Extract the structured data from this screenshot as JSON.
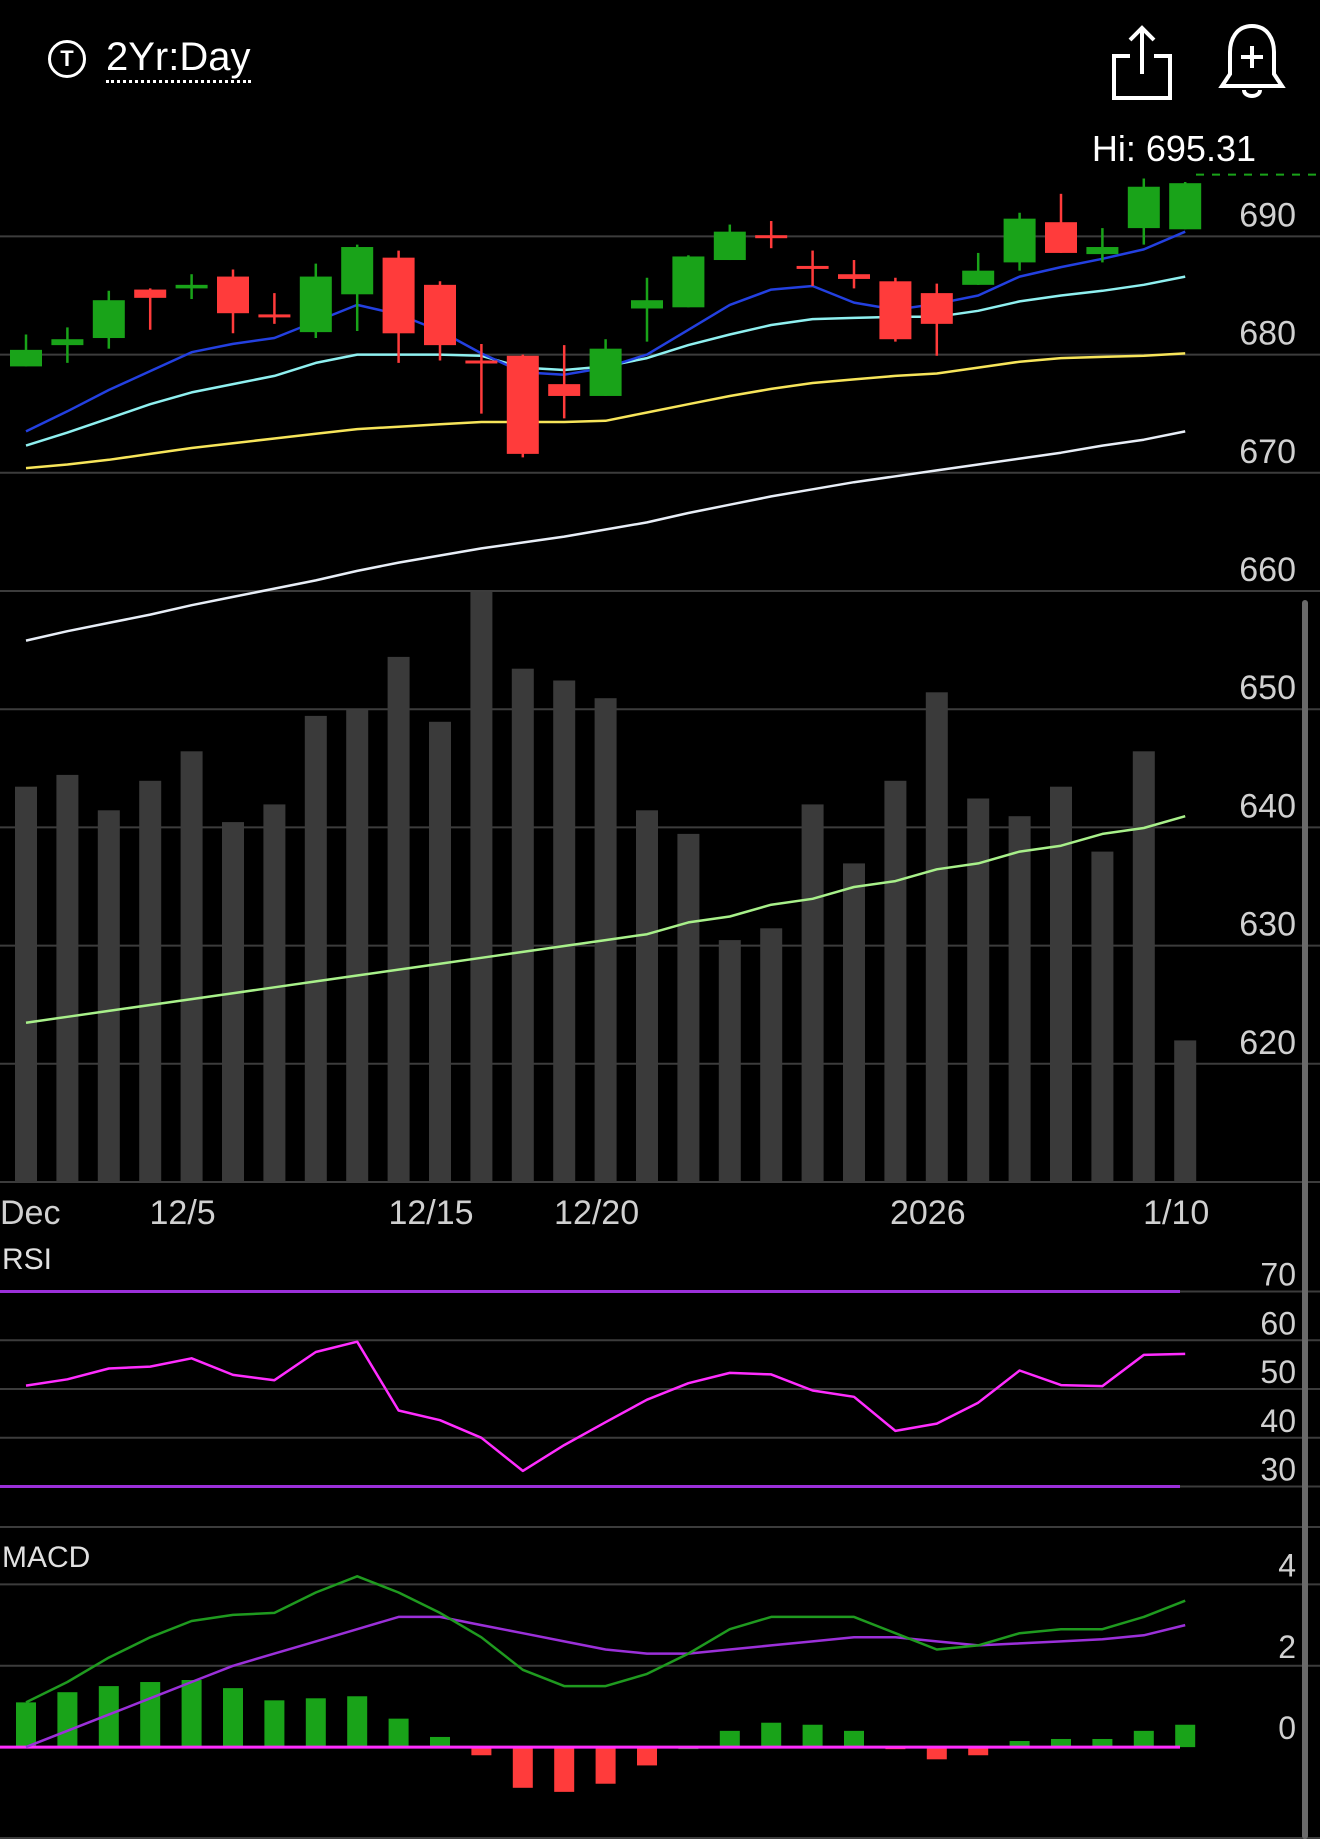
{
  "header": {
    "period_icon_letter": "T",
    "period_label": "2Yr:Day",
    "share_icon": "share-icon",
    "alert_icon": "add-alert-bell-icon"
  },
  "hi_label": "Hi: 695.31",
  "colors": {
    "up": "#19a319",
    "down": "#ff3b3b",
    "ma_blue": "#2340e0",
    "ma_cyan": "#8ff0f0",
    "ma_yellow": "#f7e55a",
    "ma_white": "#e8eef7",
    "volume_bar": "#3a3a3a",
    "volume_ma": "#a8f08a",
    "rsi_line": "#ff2dff",
    "rsi_band": "#9b30d9",
    "macd_line": "#1f9a1f",
    "macd_signal": "#9b30d9",
    "macd_zero": "#ff2dff",
    "grid": "#3c3c3c"
  },
  "chart_data": [
    {
      "type": "candlestick",
      "title": "",
      "x_labels": [
        {
          "index": 0,
          "label": "Dec"
        },
        {
          "index": 4,
          "label": "12/5"
        },
        {
          "index": 10,
          "label": "12/15"
        },
        {
          "index": 14,
          "label": "12/20"
        },
        {
          "index": 22,
          "label": "2026"
        },
        {
          "index": 28,
          "label": "1/10"
        }
      ],
      "y_ticks": [
        690,
        680,
        670,
        660,
        650,
        640,
        630,
        620
      ],
      "ylim": [
        610,
        699
      ],
      "grid": true,
      "hi_value": 695.31,
      "candles": [
        {
          "o": 679.0,
          "c": 680.4,
          "h": 681.7,
          "l": 679.0
        },
        {
          "o": 680.8,
          "c": 681.3,
          "h": 682.3,
          "l": 679.3
        },
        {
          "o": 681.4,
          "c": 684.6,
          "h": 685.4,
          "l": 680.5
        },
        {
          "o": 685.5,
          "c": 684.8,
          "h": 685.6,
          "l": 682.1
        },
        {
          "o": 685.6,
          "c": 685.9,
          "h": 686.8,
          "l": 684.7
        },
        {
          "o": 686.6,
          "c": 683.5,
          "h": 687.2,
          "l": 681.8
        },
        {
          "o": 683.4,
          "c": 683.3,
          "h": 685.2,
          "l": 682.6
        },
        {
          "o": 681.9,
          "c": 686.6,
          "h": 687.7,
          "l": 681.4
        },
        {
          "o": 685.1,
          "c": 689.1,
          "h": 689.3,
          "l": 682.0
        },
        {
          "o": 688.2,
          "c": 681.8,
          "h": 688.8,
          "l": 679.3
        },
        {
          "o": 685.9,
          "c": 680.8,
          "h": 686.2,
          "l": 679.5
        },
        {
          "o": 679.5,
          "c": 679.3,
          "h": 680.9,
          "l": 675.0
        },
        {
          "o": 679.9,
          "c": 671.6,
          "h": 680.0,
          "l": 671.3
        },
        {
          "o": 677.5,
          "c": 676.5,
          "h": 680.8,
          "l": 674.6
        },
        {
          "o": 676.5,
          "c": 680.5,
          "h": 681.3,
          "l": 676.5
        },
        {
          "o": 683.9,
          "c": 684.6,
          "h": 686.5,
          "l": 681.1
        },
        {
          "o": 684.0,
          "c": 688.3,
          "h": 688.4,
          "l": 684.0
        },
        {
          "o": 688.0,
          "c": 690.4,
          "h": 691.0,
          "l": 688.0
        },
        {
          "o": 690.1,
          "c": 690.0,
          "h": 691.3,
          "l": 689.0
        },
        {
          "o": 687.5,
          "c": 687.4,
          "h": 688.8,
          "l": 685.8
        },
        {
          "o": 686.8,
          "c": 686.4,
          "h": 688.0,
          "l": 685.6
        },
        {
          "o": 686.2,
          "c": 681.3,
          "h": 686.5,
          "l": 681.1
        },
        {
          "o": 685.2,
          "c": 682.6,
          "h": 686.0,
          "l": 679.9
        },
        {
          "o": 685.9,
          "c": 687.1,
          "h": 688.6,
          "l": 685.9
        },
        {
          "o": 687.8,
          "c": 691.5,
          "h": 692.0,
          "l": 687.1
        },
        {
          "o": 691.2,
          "c": 688.6,
          "h": 693.6,
          "l": 688.6
        },
        {
          "o": 688.5,
          "c": 689.1,
          "h": 690.7,
          "l": 687.8
        },
        {
          "o": 690.7,
          "c": 694.2,
          "h": 694.9,
          "l": 689.3
        },
        {
          "o": 690.6,
          "c": 694.5,
          "h": 694.6,
          "l": 690.6
        }
      ],
      "series": [
        {
          "values": [
            673.5,
            675.2,
            677.0,
            678.6,
            680.2,
            680.9,
            681.4,
            682.8,
            684.2,
            683.4,
            682.0,
            680.1,
            678.5,
            678.3,
            678.9,
            680.0,
            682.1,
            684.2,
            685.5,
            685.8,
            684.4,
            683.8,
            684.3,
            685.0,
            686.6,
            687.4,
            688.1,
            688.9,
            690.4
          ]
        },
        {
          "values": [
            672.3,
            673.4,
            674.6,
            675.8,
            676.8,
            677.5,
            678.2,
            679.3,
            680.0,
            680.0,
            680.0,
            679.9,
            678.9,
            678.7,
            679.0,
            679.7,
            680.8,
            681.7,
            682.5,
            683.0,
            683.1,
            683.2,
            683.2,
            683.7,
            684.5,
            685.0,
            685.4,
            685.9,
            686.6
          ]
        },
        {
          "values": [
            670.4,
            670.7,
            671.1,
            671.6,
            672.1,
            672.5,
            672.9,
            673.3,
            673.7,
            673.9,
            674.1,
            674.3,
            674.3,
            674.3,
            674.4,
            675.1,
            675.8,
            676.5,
            677.1,
            677.6,
            677.9,
            678.2,
            678.4,
            678.9,
            679.4,
            679.7,
            679.8,
            679.9,
            680.1
          ]
        },
        {
          "values": [
            655.8,
            656.6,
            657.3,
            658.0,
            658.8,
            659.5,
            660.2,
            660.9,
            661.7,
            662.4,
            663.0,
            663.6,
            664.1,
            664.6,
            665.2,
            665.8,
            666.6,
            667.3,
            668.0,
            668.6,
            669.2,
            669.7,
            670.2,
            670.7,
            671.2,
            671.7,
            672.3,
            672.8,
            673.5
          ]
        }
      ]
    },
    {
      "type": "bar",
      "title": "",
      "values": [
        0.67,
        0.69,
        0.63,
        0.68,
        0.73,
        0.61,
        0.64,
        0.79,
        0.8,
        0.89,
        0.78,
        1.0,
        0.87,
        0.85,
        0.82,
        0.63,
        0.59,
        0.41,
        0.43,
        0.64,
        0.54,
        0.68,
        0.83,
        0.65,
        0.62,
        0.67,
        0.56,
        0.73,
        0.24
      ],
      "series": [
        {
          "values": [
            0.27,
            0.28,
            0.29,
            0.3,
            0.31,
            0.32,
            0.33,
            0.34,
            0.35,
            0.36,
            0.37,
            0.38,
            0.39,
            0.4,
            0.41,
            0.42,
            0.44,
            0.45,
            0.47,
            0.48,
            0.5,
            0.51,
            0.53,
            0.54,
            0.56,
            0.57,
            0.59,
            0.6,
            0.62
          ]
        }
      ]
    },
    {
      "type": "line",
      "title": "RSI",
      "y_ticks": [
        70,
        60,
        50,
        40,
        30
      ],
      "ylim": [
        26,
        74
      ],
      "bands": [
        70,
        30
      ],
      "series": [
        {
          "values": [
            50.7,
            52.0,
            54.2,
            54.6,
            56.3,
            52.9,
            51.8,
            57.6,
            59.7,
            45.6,
            43.6,
            40.0,
            33.2,
            38.5,
            43.2,
            47.8,
            51.2,
            53.3,
            53.0,
            49.7,
            48.4,
            41.4,
            42.9,
            47.2,
            53.8,
            50.8,
            50.6,
            57.0,
            57.2
          ]
        }
      ]
    },
    {
      "type": "bar",
      "title": "MACD",
      "y_ticks": [
        4,
        2,
        0
      ],
      "ylim": [
        -1.3,
        4.6
      ],
      "series": [
        {
          "values": [
            1.1,
            1.6,
            2.2,
            2.7,
            3.1,
            3.25,
            3.3,
            3.8,
            4.2,
            3.8,
            3.3,
            2.7,
            1.9,
            1.5,
            1.5,
            1.8,
            2.3,
            2.9,
            3.2,
            3.2,
            3.2,
            2.8,
            2.4,
            2.5,
            2.8,
            2.9,
            2.9,
            3.2,
            3.6
          ]
        },
        {
          "values": [
            0.0,
            0.4,
            0.8,
            1.2,
            1.6,
            2.0,
            2.3,
            2.6,
            2.9,
            3.2,
            3.2,
            3.0,
            2.8,
            2.6,
            2.4,
            2.3,
            2.3,
            2.4,
            2.5,
            2.6,
            2.7,
            2.7,
            2.6,
            2.5,
            2.55,
            2.6,
            2.65,
            2.75,
            3.0
          ]
        }
      ],
      "values": [
        1.1,
        1.35,
        1.5,
        1.6,
        1.65,
        1.45,
        1.15,
        1.2,
        1.25,
        0.7,
        0.25,
        -0.2,
        -1.0,
        -1.1,
        -0.9,
        -0.45,
        0.0,
        0.4,
        0.6,
        0.55,
        0.4,
        -0.05,
        -0.3,
        -0.2,
        0.15,
        0.2,
        0.2,
        0.4,
        0.55
      ]
    }
  ]
}
